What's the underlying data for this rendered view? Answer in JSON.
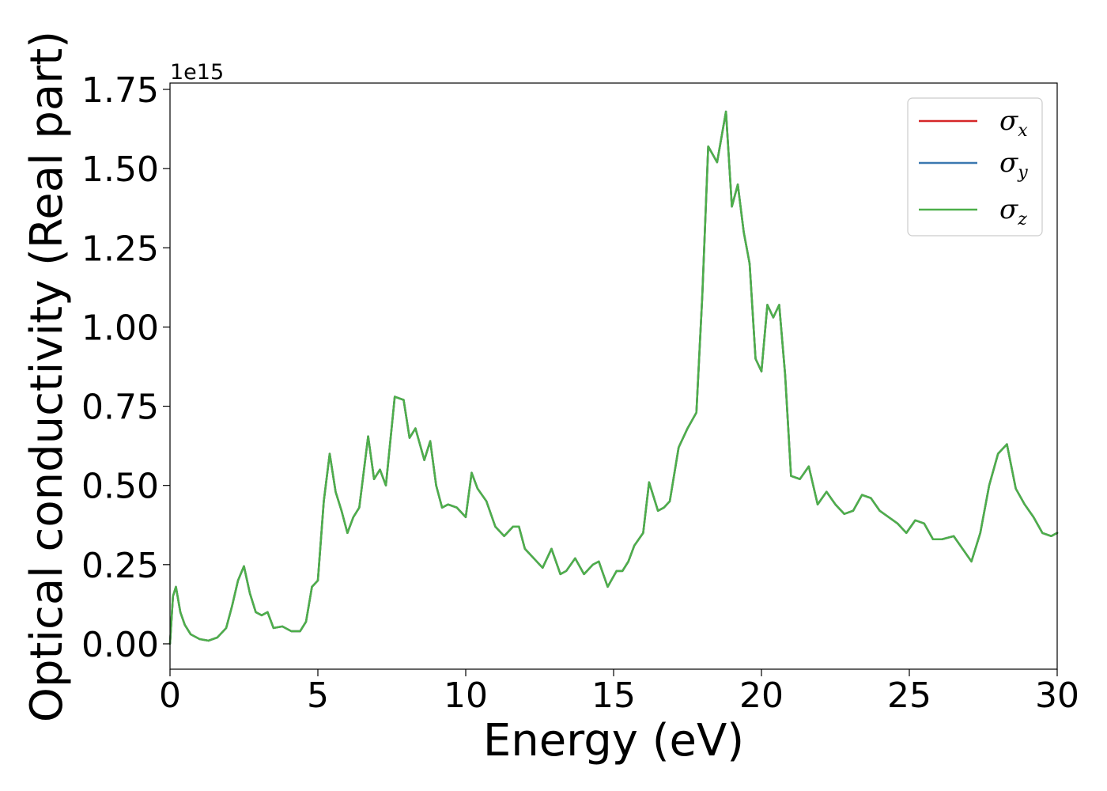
{
  "chart_data": {
    "type": "line",
    "xlabel": "Energy (eV)",
    "ylabel": "Optical conductivity (Real part)",
    "y_offset_label": "1e15",
    "xlim": [
      0,
      30
    ],
    "ylim": [
      -0.08,
      1.77
    ],
    "x_ticks": [
      0,
      5,
      10,
      15,
      20,
      25,
      30
    ],
    "x_tick_labels": [
      "0",
      "5",
      "10",
      "15",
      "20",
      "25",
      "30"
    ],
    "y_ticks": [
      0.0,
      0.25,
      0.5,
      0.75,
      1.0,
      1.25,
      1.5,
      1.75
    ],
    "y_tick_labels": [
      "0.00",
      "0.25",
      "0.50",
      "0.75",
      "1.00",
      "1.25",
      "1.50",
      "1.75"
    ],
    "grid": false,
    "legend_position": "top-right",
    "x": [
      0,
      0.1,
      0.2,
      0.35,
      0.5,
      0.7,
      1.0,
      1.3,
      1.6,
      1.9,
      2.1,
      2.3,
      2.5,
      2.7,
      2.9,
      3.1,
      3.3,
      3.5,
      3.8,
      4.1,
      4.4,
      4.6,
      4.8,
      5.0,
      5.2,
      5.4,
      5.6,
      5.8,
      6.0,
      6.2,
      6.4,
      6.7,
      6.9,
      7.1,
      7.3,
      7.6,
      7.9,
      8.1,
      8.3,
      8.6,
      8.8,
      9.0,
      9.2,
      9.4,
      9.7,
      10.0,
      10.2,
      10.4,
      10.7,
      11.0,
      11.3,
      11.6,
      11.8,
      12.0,
      12.3,
      12.6,
      12.9,
      13.2,
      13.4,
      13.7,
      14.0,
      14.3,
      14.5,
      14.8,
      15.1,
      15.3,
      15.5,
      15.7,
      16.0,
      16.2,
      16.5,
      16.7,
      16.9,
      17.2,
      17.5,
      17.8,
      18.0,
      18.2,
      18.5,
      18.8,
      19.0,
      19.2,
      19.4,
      19.6,
      19.8,
      20.0,
      20.2,
      20.4,
      20.6,
      20.8,
      21.0,
      21.3,
      21.6,
      21.9,
      22.2,
      22.5,
      22.8,
      23.1,
      23.4,
      23.7,
      24.0,
      24.3,
      24.6,
      24.9,
      25.2,
      25.5,
      25.8,
      26.1,
      26.5,
      26.8,
      27.1,
      27.4,
      27.7,
      28.0,
      28.3,
      28.6,
      28.9,
      29.2,
      29.5,
      29.8,
      30.0
    ],
    "series": [
      {
        "name": "σ",
        "subscript": "x",
        "color": "#d62728",
        "values": [
          0.0,
          0.15,
          0.18,
          0.1,
          0.06,
          0.03,
          0.015,
          0.01,
          0.02,
          0.05,
          0.12,
          0.2,
          0.245,
          0.16,
          0.1,
          0.09,
          0.1,
          0.05,
          0.055,
          0.04,
          0.04,
          0.07,
          0.18,
          0.2,
          0.45,
          0.6,
          0.48,
          0.42,
          0.35,
          0.4,
          0.43,
          0.655,
          0.52,
          0.55,
          0.5,
          0.78,
          0.77,
          0.65,
          0.68,
          0.58,
          0.64,
          0.5,
          0.43,
          0.44,
          0.43,
          0.4,
          0.54,
          0.49,
          0.45,
          0.37,
          0.34,
          0.37,
          0.37,
          0.3,
          0.27,
          0.24,
          0.3,
          0.22,
          0.23,
          0.27,
          0.22,
          0.25,
          0.26,
          0.18,
          0.23,
          0.23,
          0.26,
          0.31,
          0.35,
          0.51,
          0.42,
          0.43,
          0.45,
          0.62,
          0.68,
          0.73,
          1.1,
          1.57,
          1.52,
          1.68,
          1.38,
          1.45,
          1.3,
          1.2,
          0.9,
          0.86,
          1.07,
          1.03,
          1.07,
          0.85,
          0.53,
          0.52,
          0.56,
          0.44,
          0.48,
          0.44,
          0.41,
          0.42,
          0.47,
          0.46,
          0.42,
          0.4,
          0.38,
          0.35,
          0.39,
          0.38,
          0.33,
          0.33,
          0.34,
          0.3,
          0.26,
          0.35,
          0.5,
          0.6,
          0.63,
          0.49,
          0.44,
          0.4,
          0.35,
          0.34,
          0.35
        ]
      },
      {
        "name": "σ",
        "subscript": "y",
        "color": "#3b78b0",
        "values": [
          0.0,
          0.15,
          0.18,
          0.1,
          0.06,
          0.03,
          0.015,
          0.01,
          0.02,
          0.05,
          0.12,
          0.2,
          0.245,
          0.16,
          0.1,
          0.09,
          0.1,
          0.05,
          0.055,
          0.04,
          0.04,
          0.07,
          0.18,
          0.2,
          0.45,
          0.6,
          0.48,
          0.42,
          0.35,
          0.4,
          0.43,
          0.655,
          0.52,
          0.55,
          0.5,
          0.78,
          0.77,
          0.65,
          0.68,
          0.58,
          0.64,
          0.5,
          0.43,
          0.44,
          0.43,
          0.4,
          0.54,
          0.49,
          0.45,
          0.37,
          0.34,
          0.37,
          0.37,
          0.3,
          0.27,
          0.24,
          0.3,
          0.22,
          0.23,
          0.27,
          0.22,
          0.25,
          0.26,
          0.18,
          0.23,
          0.23,
          0.26,
          0.31,
          0.35,
          0.51,
          0.42,
          0.43,
          0.45,
          0.62,
          0.68,
          0.73,
          1.1,
          1.57,
          1.52,
          1.68,
          1.38,
          1.45,
          1.3,
          1.2,
          0.9,
          0.86,
          1.07,
          1.03,
          1.07,
          0.85,
          0.53,
          0.52,
          0.56,
          0.44,
          0.48,
          0.44,
          0.41,
          0.42,
          0.47,
          0.46,
          0.42,
          0.4,
          0.38,
          0.35,
          0.39,
          0.38,
          0.33,
          0.33,
          0.34,
          0.3,
          0.26,
          0.35,
          0.5,
          0.6,
          0.63,
          0.49,
          0.44,
          0.4,
          0.35,
          0.34,
          0.35
        ]
      },
      {
        "name": "σ",
        "subscript": "z",
        "color": "#4daf4a",
        "values": [
          0.0,
          0.15,
          0.18,
          0.1,
          0.06,
          0.03,
          0.015,
          0.01,
          0.02,
          0.05,
          0.12,
          0.2,
          0.245,
          0.16,
          0.1,
          0.09,
          0.1,
          0.05,
          0.055,
          0.04,
          0.04,
          0.07,
          0.18,
          0.2,
          0.45,
          0.6,
          0.48,
          0.42,
          0.35,
          0.4,
          0.43,
          0.655,
          0.52,
          0.55,
          0.5,
          0.78,
          0.77,
          0.65,
          0.68,
          0.58,
          0.64,
          0.5,
          0.43,
          0.44,
          0.43,
          0.4,
          0.54,
          0.49,
          0.45,
          0.37,
          0.34,
          0.37,
          0.37,
          0.3,
          0.27,
          0.24,
          0.3,
          0.22,
          0.23,
          0.27,
          0.22,
          0.25,
          0.26,
          0.18,
          0.23,
          0.23,
          0.26,
          0.31,
          0.35,
          0.51,
          0.42,
          0.43,
          0.45,
          0.62,
          0.68,
          0.73,
          1.1,
          1.57,
          1.52,
          1.68,
          1.38,
          1.45,
          1.3,
          1.2,
          0.9,
          0.86,
          1.07,
          1.03,
          1.07,
          0.85,
          0.53,
          0.52,
          0.56,
          0.44,
          0.48,
          0.44,
          0.41,
          0.42,
          0.47,
          0.46,
          0.42,
          0.4,
          0.38,
          0.35,
          0.39,
          0.38,
          0.33,
          0.33,
          0.34,
          0.3,
          0.26,
          0.35,
          0.5,
          0.6,
          0.63,
          0.49,
          0.44,
          0.4,
          0.35,
          0.34,
          0.35
        ]
      }
    ]
  }
}
